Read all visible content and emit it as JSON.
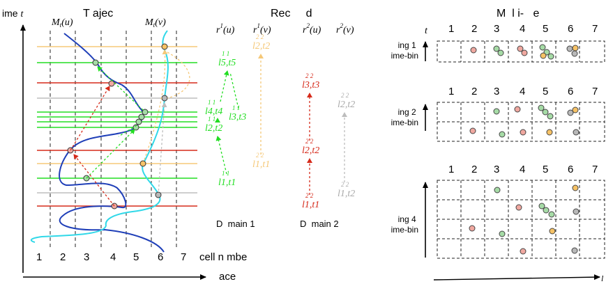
{
  "left_panel": {
    "y_axis_label": "ime",
    "y_axis_var": "t",
    "title": "T ajec",
    "curve_u_label": "M",
    "curve_u_sub": "t",
    "curve_u_arg": "(u)",
    "curve_v_label": "M",
    "curve_v_sub": "t",
    "curve_v_arg": "(v)",
    "x_ticks": [
      "1",
      "2",
      "3",
      "4",
      "5",
      "6",
      "7"
    ],
    "x_axis_caption": "cell n  mbe",
    "x_axis_label": "ace",
    "colors": {
      "blue": "#1f3fb8",
      "cyan": "#30d8e8",
      "orange": "#f5c878",
      "green": "#22dd22",
      "red": "#d62a1a",
      "gray": "#bdbdbd"
    }
  },
  "middle_panel": {
    "title": "Rec     d",
    "columns": [
      {
        "base": "r",
        "sup": "1",
        "arg": "(u)"
      },
      {
        "base": "r",
        "sup": "1",
        "arg": "(v)"
      },
      {
        "base": "r",
        "sup": "2",
        "arg": "(u)"
      },
      {
        "base": "r",
        "sup": "2",
        "arg": "(v)"
      }
    ],
    "domain1_label": "D  main 1",
    "domain2_label": "D  main 2",
    "domain1_points": [
      {
        "id": "l5t5",
        "text": "l5,t5",
        "sup": "1 1"
      },
      {
        "id": "l4t4",
        "text": "l4,t4",
        "sup": "1 1"
      },
      {
        "id": "l3t3",
        "text": "l3,t3",
        "sup": "1 1"
      },
      {
        "id": "l2t2",
        "text": "l2,t2",
        "sup": "1 1"
      },
      {
        "id": "l1t1",
        "text": "l1,t1",
        "sup": "1 1"
      }
    ],
    "domain1_v_points": [
      {
        "id": "v-top",
        "text": "l2,t2",
        "sup": "2 2"
      },
      {
        "id": "v-bottom",
        "text": "l1,t1",
        "sup": "2 2"
      }
    ],
    "domain2_points": [
      {
        "id": "r-top",
        "text": "l3,t3",
        "sup": "2 2"
      },
      {
        "id": "r-mid",
        "text": "l2,t2",
        "sup": "2 2"
      },
      {
        "id": "r-bottom",
        "text": "l1,t1",
        "sup": "2 2"
      }
    ],
    "domain2_v_points": [
      {
        "id": "g-top",
        "text": "l2,t2",
        "sup": "2 2"
      },
      {
        "id": "g-bottom",
        "text": "l1,t2",
        "sup": "2 2"
      }
    ]
  },
  "right_panel": {
    "title": "M  l i-   e",
    "t_label": "t",
    "column_numbers": [
      "1",
      "2",
      "3",
      "4",
      "5",
      "6",
      "7"
    ],
    "grid1_label": [
      "ing 1",
      "ime-bin"
    ],
    "grid2_label": [
      "ing 2",
      "ime-bin"
    ],
    "grid4_label": [
      "ing 4",
      "ime-bin"
    ],
    "axis_end_label": "l",
    "dot_colors": {
      "pink": "#f0a8a0",
      "green": "#a6dba6",
      "orange": "#f6c266",
      "gray": "#b8b8b8"
    }
  }
}
